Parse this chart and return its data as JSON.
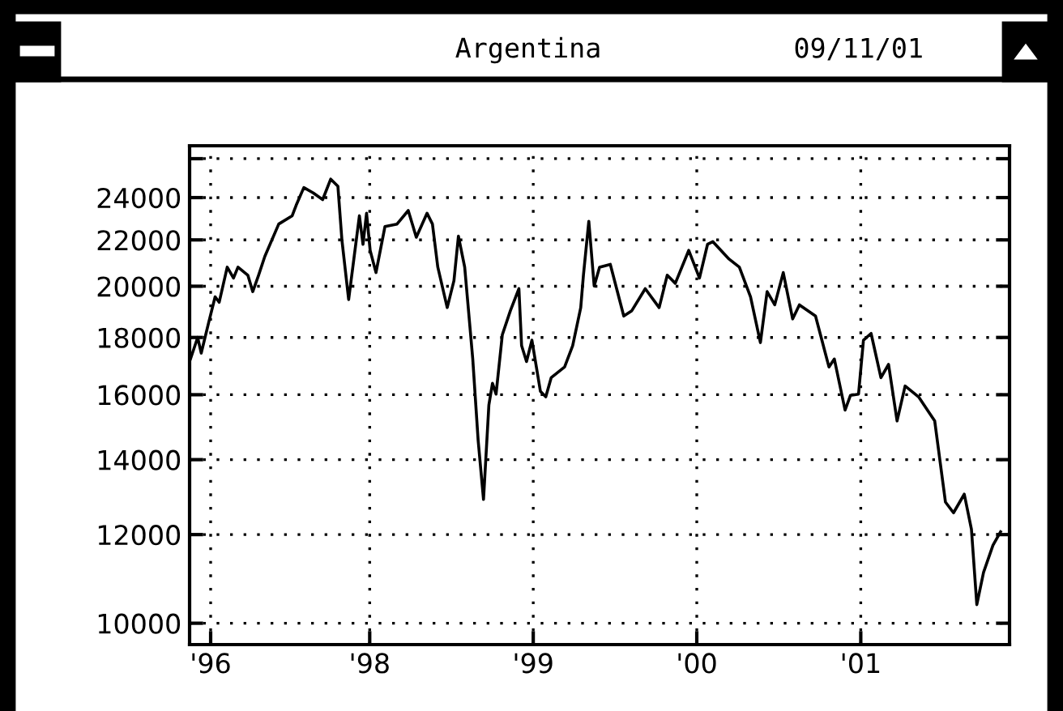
{
  "chart_data": {
    "type": "line",
    "title": "Argentina",
    "subtitle": "09/11/01",
    "series": [
      {
        "color": "#000000",
        "x": [
          "1996-11-27",
          "1996-12-13",
          "1996-12-21",
          "1997-01-06",
          "1997-01-21",
          "1997-01-30",
          "1997-02-17",
          "1997-03-03",
          "1997-03-13",
          "1997-04-04",
          "1997-04-15",
          "1997-04-28",
          "1997-05-12",
          "1997-06-12",
          "1997-07-12",
          "1997-07-21",
          "1997-08-07",
          "1997-08-28",
          "1997-09-18",
          "1997-10-06",
          "1997-10-22",
          "1997-10-31",
          "1997-11-15",
          "1997-12-09",
          "1997-12-17",
          "1997-12-25",
          "1998-01-02",
          "1998-01-15",
          "1998-02-04",
          "1998-03-03",
          "1998-03-28",
          "1998-04-15",
          "1998-05-09",
          "1998-05-21",
          "1998-06-02",
          "1998-06-23",
          "1998-07-08",
          "1998-07-18",
          "1998-08-01",
          "1998-08-19",
          "1998-08-31",
          "1998-09-12",
          "1998-09-24",
          "1998-10-02",
          "1998-10-10",
          "1998-10-24",
          "1998-11-11",
          "1998-11-30",
          "1998-12-06",
          "1998-12-17",
          "1998-12-29",
          "1999-01-17",
          "1999-01-29",
          "1999-02-10",
          "1999-03-12",
          "1999-03-30",
          "1999-04-17",
          "1999-04-23",
          "1999-05-05",
          "1999-05-17",
          "1999-05-29",
          "1999-06-22",
          "1999-07-22",
          "1999-08-09",
          "1999-09-08",
          "1999-10-09",
          "1999-10-27",
          "1999-11-14",
          "1999-12-14",
          "2000-01-07",
          "2000-01-25",
          "2000-02-06",
          "2000-03-13",
          "2000-04-05",
          "2000-04-30",
          "2000-05-22",
          "2000-06-06",
          "2000-06-23",
          "2000-07-12",
          "2000-08-02",
          "2000-08-17",
          "2000-09-22",
          "2000-10-22",
          "2000-11-03",
          "2000-11-27",
          "2000-12-09",
          "2000-12-27",
          "2001-01-07",
          "2001-01-24",
          "2001-02-15",
          "2001-03-04",
          "2001-03-23",
          "2001-04-10",
          "2001-05-10",
          "2001-06-15",
          "2001-07-09",
          "2001-07-27",
          "2001-08-20",
          "2001-09-05",
          "2001-09-17",
          "2001-10-02",
          "2001-10-23",
          "2001-11-09"
        ],
        "values": [
          17220,
          18000,
          17430,
          18520,
          19570,
          19350,
          20800,
          20340,
          20800,
          20460,
          19780,
          20460,
          21270,
          22730,
          23120,
          23630,
          24500,
          24230,
          23900,
          24930,
          24570,
          21990,
          19460,
          23120,
          21800,
          23240,
          21530,
          20570,
          22610,
          22730,
          23370,
          22120,
          23240,
          22730,
          20800,
          19140,
          20230,
          22170,
          20800,
          17220,
          14570,
          12900,
          15670,
          16380,
          16020,
          18100,
          19020,
          19900,
          17700,
          17130,
          17900,
          16110,
          15930,
          16570,
          16940,
          17700,
          19140,
          20460,
          22860,
          20010,
          20800,
          20920,
          18810,
          19020,
          19900,
          19140,
          20460,
          20120,
          21530,
          20340,
          21800,
          21920,
          21150,
          20800,
          19570,
          17810,
          19780,
          19250,
          20570,
          18700,
          19250,
          18810,
          16940,
          17220,
          15500,
          15980,
          16020,
          17900,
          18150,
          16570,
          17030,
          15160,
          16290,
          15930,
          15160,
          12830,
          12550,
          13040,
          12130,
          10390,
          11100,
          11740,
          12070
        ]
      }
    ],
    "log": "y",
    "xlim": [
      "1996-11-25",
      "2001-11-29"
    ],
    "xticks": [
      {
        "value": "1997-01-11",
        "label": "'96"
      },
      {
        "value": "1998-01-01",
        "label": "'98"
      },
      {
        "value": "1999-01-01",
        "label": "'99"
      },
      {
        "value": "2000-01-01",
        "label": "'00"
      },
      {
        "value": "2001-01-01",
        "label": "'01"
      }
    ],
    "ylim": [
      9570,
      26700
    ],
    "yticks": [
      10000,
      12000,
      14000,
      16000,
      18000,
      20000,
      22000,
      24000,
      {
        "value": 26000,
        "label": null
      }
    ],
    "grid": true,
    "line_style": "solid",
    "marker": "none"
  }
}
